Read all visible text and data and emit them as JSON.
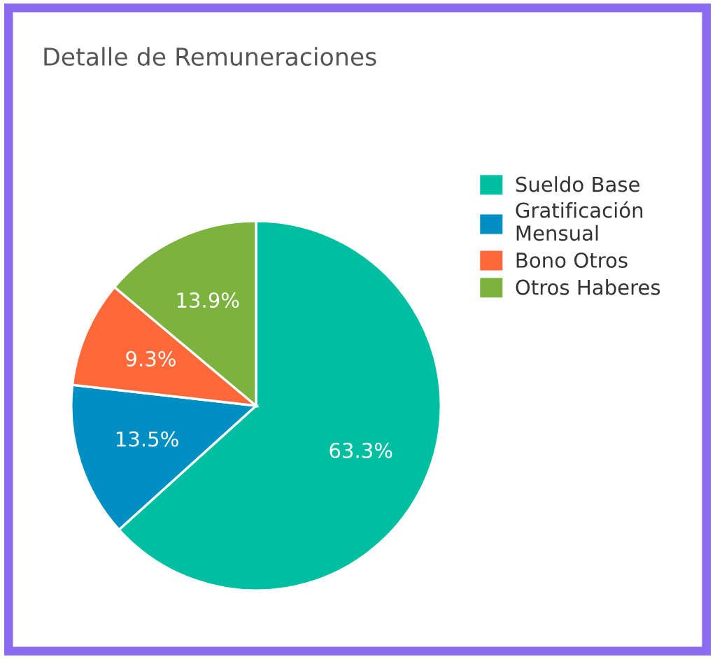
{
  "chart_data": {
    "type": "pie",
    "title": "Detalle de Remuneraciones",
    "categories": [
      "Sueldo Base",
      "Gratificación Mensual",
      "Bono Otros",
      "Otros Haberes"
    ],
    "values": [
      63.3,
      13.5,
      9.3,
      13.9
    ],
    "colors": [
      "#00bfa0",
      "#008fc2",
      "#ff6838",
      "#7cb33e"
    ],
    "value_labels": [
      "63.3%",
      "13.5%",
      "9.3%",
      "13.9%"
    ],
    "legend": "right"
  }
}
